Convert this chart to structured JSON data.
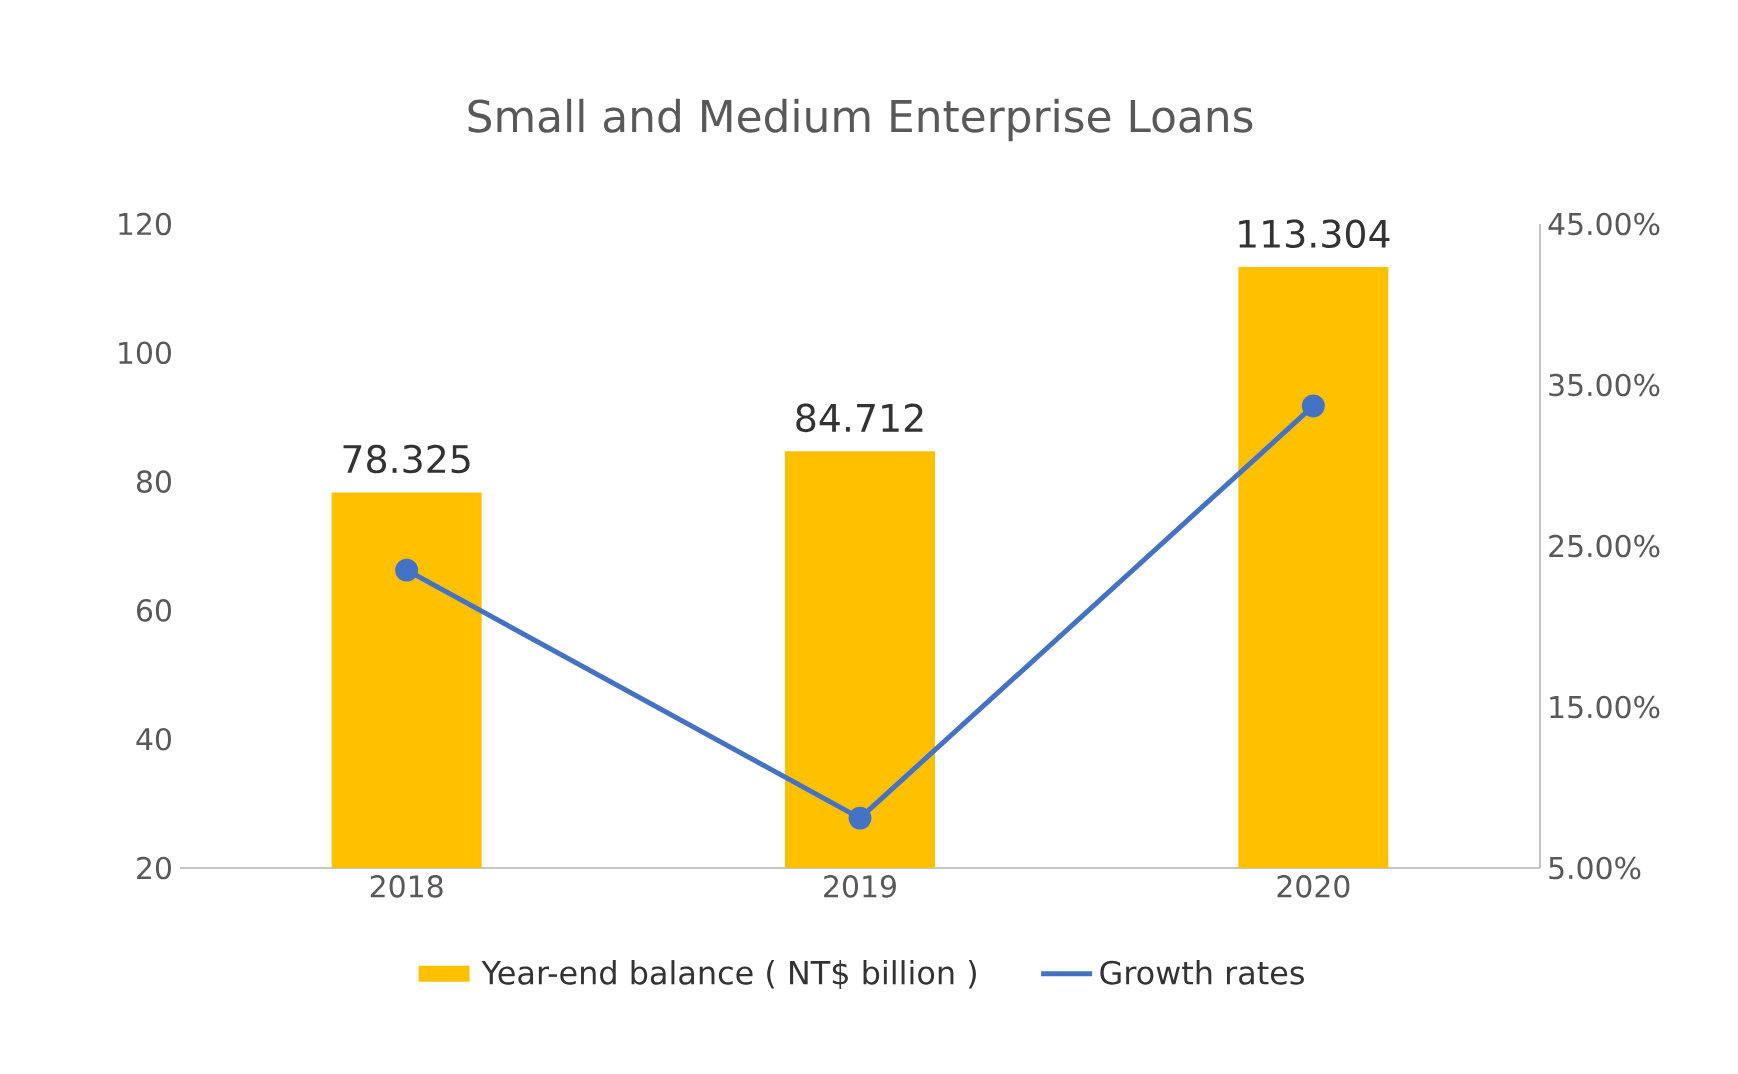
{
  "chart_data": {
    "type": "bar",
    "title": "Small and Medium Enterprise Loans",
    "categories": [
      "2018",
      "2019",
      "2020"
    ],
    "series": [
      {
        "name": "Year-end balance ( NT$ billion )",
        "color": "#ffc000",
        "values": [
          78.325,
          84.712,
          113.304
        ],
        "value_labels": [
          "78.325",
          "84.712",
          "113.304"
        ]
      },
      {
        "name": "Growth rates",
        "type": "line",
        "axis": "y2",
        "color": "#4472c4",
        "marker": "circle",
        "values": [
          23.5,
          8.1,
          33.7
        ]
      }
    ],
    "ylim": [
      20,
      120
    ],
    "yticks": [
      20,
      40,
      60,
      80,
      100,
      120
    ],
    "y2lim": [
      5,
      45
    ],
    "y2ticks": [
      {
        "value": 5,
        "label": "5.00%"
      },
      {
        "value": 15,
        "label": "15.00%"
      },
      {
        "value": 25,
        "label": "25.00%"
      },
      {
        "value": 35,
        "label": "35.00%"
      },
      {
        "value": 45,
        "label": "45.00%"
      }
    ],
    "legend": "bottom"
  }
}
